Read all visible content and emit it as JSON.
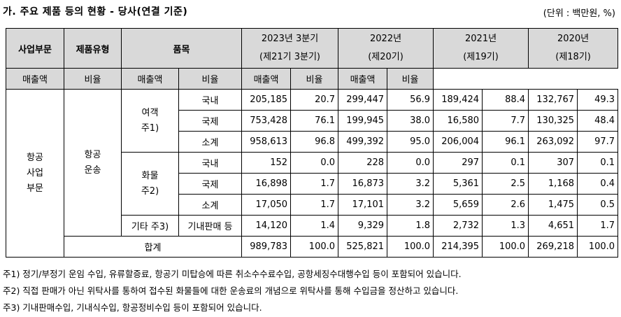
{
  "title": "가. 주요 제품 등의 현황 - 당사(연결 기준)",
  "unit": "(단위 : 백만원, %)",
  "headers": {
    "segment": "사업부문",
    "type": "제품유형",
    "item": "품목",
    "sales": "매출액",
    "ratio": "비율",
    "periods": [
      {
        "year": "2023년 3분기",
        "term": "(제21기 3분기)"
      },
      {
        "year": "2022년",
        "term": "(제20기)"
      },
      {
        "year": "2021년",
        "term": "(제19기)"
      },
      {
        "year": "2020년",
        "term": "(제18기)"
      }
    ]
  },
  "segment": {
    "line1": "항공",
    "line2": "사업",
    "line3": "부문"
  },
  "product_type": {
    "line1": "항공",
    "line2": "운송"
  },
  "groups": {
    "passenger": {
      "line1": "여객",
      "line2": "주1)"
    },
    "cargo": {
      "line1": "화물",
      "line2": "주2)"
    },
    "other": "기타 주3)"
  },
  "rows": [
    {
      "label": "국내",
      "v": [
        "205,185",
        "20.7",
        "299,447",
        "56.9",
        "189,424",
        "88.4",
        "132,767",
        "49.3"
      ]
    },
    {
      "label": "국제",
      "v": [
        "753,428",
        "76.1",
        "199,945",
        "38.0",
        "16,580",
        "7.7",
        "130,325",
        "48.4"
      ]
    },
    {
      "label": "소계",
      "v": [
        "958,613",
        "96.8",
        "499,392",
        "95.0",
        "206,004",
        "96.1",
        "263,092",
        "97.7"
      ]
    },
    {
      "label": "국내",
      "v": [
        "152",
        "0.0",
        "228",
        "0.0",
        "297",
        "0.1",
        "307",
        "0.1"
      ]
    },
    {
      "label": "국제",
      "v": [
        "16,898",
        "1.7",
        "16,873",
        "3.2",
        "5,361",
        "2.5",
        "1,168",
        "0.4"
      ]
    },
    {
      "label": "소계",
      "v": [
        "17,050",
        "1.7",
        "17,101",
        "3.2",
        "5,659",
        "2.6",
        "1,475",
        "0.5"
      ]
    },
    {
      "label": "기내판매 등",
      "v": [
        "14,120",
        "1.4",
        "9,329",
        "1.8",
        "2,732",
        "1.3",
        "4,651",
        "1.7"
      ]
    },
    {
      "label": "합계",
      "v": [
        "989,783",
        "100.0",
        "525,821",
        "100.0",
        "214,395",
        "100.0",
        "269,218",
        "100.0"
      ]
    }
  ],
  "notes": [
    "주1) 정기/부정기 운임 수입, 유류할증료, 항공기 미탑승에 따른 취소수수료수입, 공항세징수대행수입 등이 포함되어 있습니다.",
    "주2) 직접 판매가 아닌 위탁사를 통하여 접수된 화물들에 대한 운송료의 개념으로 위탁사를 통해 수입금을 정산하고 있습니다.",
    "주3) 기내판매수입, 기내식수입, 항공정비수입 등이 포함되어 있습니다."
  ]
}
